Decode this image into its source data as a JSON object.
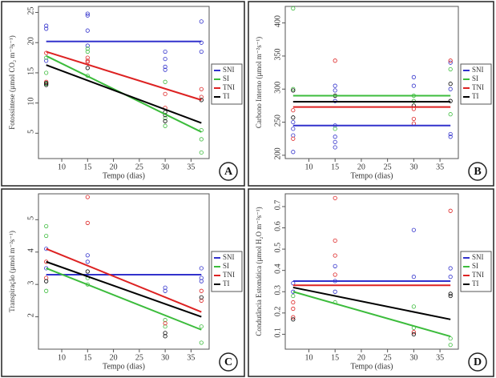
{
  "chart_data": [
    {
      "type": "scatter",
      "panel": "A",
      "ylabel": "Fotossíntese (µmol CO₂ m⁻²s⁻¹)",
      "xlabel": "Tempo (dias)",
      "xlim": [
        5.5,
        38.5
      ],
      "xticks": [
        10,
        15,
        20,
        25,
        30,
        35
      ],
      "ylim": [
        0.8,
        26
      ],
      "yticks": [
        5,
        10,
        15,
        20,
        25
      ],
      "fit_x": [
        7,
        37
      ],
      "series": [
        {
          "name": "SNI",
          "color": "#3232cc",
          "x": [
            7,
            7,
            7,
            15,
            15,
            15,
            15,
            30,
            30,
            30,
            30,
            37,
            37,
            37
          ],
          "values": [
            22.8,
            22.3,
            17.0,
            24.8,
            24.5,
            22.0,
            19.5,
            18.5,
            17.3,
            16.0,
            15.5,
            23.5,
            20.0,
            18.5
          ],
          "fit": [
            20.2,
            20.2
          ]
        },
        {
          "name": "SI",
          "color": "#3cbc3c",
          "x": [
            7,
            7,
            7,
            15,
            15,
            15,
            30,
            30,
            30,
            37,
            37,
            37
          ],
          "values": [
            13.2,
            15.0,
            17.5,
            19.0,
            14.5,
            18.5,
            13.5,
            7.5,
            6.2,
            5.5,
            4.0,
            1.8
          ],
          "fit": [
            17.8,
            5.2
          ]
        },
        {
          "name": "TNI",
          "color": "#dd2222",
          "x": [
            7,
            7,
            15,
            15,
            15,
            30,
            30,
            37,
            37
          ],
          "values": [
            13.5,
            18.3,
            17.5,
            16.8,
            17.0,
            11.5,
            9.2,
            12.3,
            11.0
          ],
          "fit": [
            18.5,
            10.5
          ]
        },
        {
          "name": "TI",
          "color": "#000000",
          "x": [
            7,
            7,
            15,
            30,
            30,
            30,
            37
          ],
          "values": [
            13.3,
            13.0,
            15.8,
            8.5,
            8.0,
            7.0,
            10.5
          ],
          "fit": [
            16.3,
            6.7
          ]
        }
      ]
    },
    {
      "type": "scatter",
      "panel": "B",
      "ylabel": "Carbono Interno (µmol m⁻²s⁻¹)",
      "xlabel": "Tempo (dias)",
      "xlim": [
        5.5,
        38.5
      ],
      "xticks": [
        10,
        15,
        20,
        25,
        30,
        35
      ],
      "ylim": [
        195,
        425
      ],
      "yticks": [
        200,
        250,
        300,
        350,
        400
      ],
      "fit_x": [
        7,
        37
      ],
      "series": [
        {
          "name": "SNI",
          "color": "#3232cc",
          "x": [
            7,
            7,
            7,
            7,
            15,
            15,
            15,
            15,
            15,
            15,
            15,
            30,
            30,
            37,
            37,
            37,
            37
          ],
          "values": [
            250,
            240,
            230,
            205,
            305,
            298,
            282,
            245,
            228,
            220,
            212,
            318,
            305,
            340,
            300,
            232,
            228
          ],
          "fit": [
            245,
            245
          ]
        },
        {
          "name": "SI",
          "color": "#3cbc3c",
          "x": [
            7,
            7,
            15,
            30,
            30,
            37,
            37
          ],
          "values": [
            422,
            300,
            240,
            290,
            282,
            330,
            262
          ],
          "fit": [
            290,
            290
          ]
        },
        {
          "name": "TNI",
          "color": "#dd2222",
          "x": [
            7,
            7,
            15,
            30,
            30,
            30,
            37
          ],
          "values": [
            268,
            225,
            343,
            270,
            255,
            248,
            343
          ],
          "fit": [
            273,
            273
          ]
        },
        {
          "name": "TI",
          "color": "#000000",
          "x": [
            7,
            7,
            15,
            30,
            37,
            37
          ],
          "values": [
            298,
            257,
            290,
            275,
            308,
            282
          ],
          "fit": [
            281,
            281
          ]
        }
      ]
    },
    {
      "type": "scatter",
      "panel": "C",
      "ylabel": "Transpiração (µmol m⁻²s⁻¹)",
      "xlabel": "Tempo (dias)",
      "xlim": [
        5.5,
        38.5
      ],
      "xticks": [
        10,
        15,
        20,
        25,
        30,
        35
      ],
      "ylim": [
        1.0,
        5.8
      ],
      "yticks": [
        2,
        3,
        4,
        5
      ],
      "fit_x": [
        7,
        37
      ],
      "series": [
        {
          "name": "SNI",
          "color": "#3232cc",
          "x": [
            7,
            7,
            15,
            15,
            30,
            30,
            37,
            37,
            37
          ],
          "values": [
            4.1,
            3.5,
            3.9,
            3.7,
            2.9,
            2.8,
            3.5,
            3.2,
            3.1
          ],
          "fit": [
            3.3,
            3.3
          ]
        },
        {
          "name": "SI",
          "color": "#3cbc3c",
          "x": [
            7,
            7,
            7,
            15,
            15,
            30,
            30,
            37,
            37
          ],
          "values": [
            4.8,
            4.5,
            2.8,
            3.0,
            3.2,
            1.9,
            1.7,
            1.7,
            1.2
          ],
          "fit": [
            3.5,
            1.6
          ]
        },
        {
          "name": "TNI",
          "color": "#dd2222",
          "x": [
            7,
            7,
            15,
            15,
            30,
            37,
            37
          ],
          "values": [
            3.7,
            3.2,
            5.7,
            4.9,
            1.8,
            2.5,
            2.8
          ],
          "fit": [
            4.1,
            2.15
          ]
        },
        {
          "name": "TI",
          "color": "#000000",
          "x": [
            7,
            15,
            30,
            30,
            37
          ],
          "values": [
            3.1,
            3.4,
            1.5,
            1.4,
            2.6
          ],
          "fit": [
            3.7,
            2.0
          ]
        }
      ]
    },
    {
      "type": "scatter",
      "panel": "D",
      "ylabel": "Condutância Estomática (µmol H₂O m⁻²s⁻¹)",
      "xlabel": "Tempo (dias)",
      "xlim": [
        5.5,
        38.5
      ],
      "xticks": [
        10,
        15,
        20,
        25,
        30,
        35
      ],
      "ylim": [
        0.03,
        0.76
      ],
      "yticks": [
        0.1,
        0.2,
        0.3,
        0.4,
        0.5,
        0.6,
        0.7
      ],
      "fit_x": [
        7,
        37
      ],
      "series": [
        {
          "name": "SNI",
          "color": "#3232cc",
          "x": [
            7,
            7,
            15,
            15,
            15,
            30,
            30,
            37,
            37
          ],
          "values": [
            0.34,
            0.3,
            0.42,
            0.35,
            0.3,
            0.59,
            0.37,
            0.41,
            0.37
          ],
          "fit": [
            0.35,
            0.35
          ]
        },
        {
          "name": "SI",
          "color": "#3cbc3c",
          "x": [
            7,
            15,
            30,
            30,
            37,
            37
          ],
          "values": [
            0.28,
            0.25,
            0.23,
            0.13,
            0.08,
            0.05
          ],
          "fit": [
            0.3,
            0.09
          ]
        },
        {
          "name": "TNI",
          "color": "#dd2222",
          "x": [
            7,
            7,
            7,
            15,
            15,
            15,
            15,
            30,
            37
          ],
          "values": [
            0.25,
            0.22,
            0.18,
            0.74,
            0.54,
            0.47,
            0.38,
            0.11,
            0.68
          ],
          "fit": [
            0.33,
            0.33
          ]
        },
        {
          "name": "TI",
          "color": "#000000",
          "x": [
            7,
            30,
            37,
            37
          ],
          "values": [
            0.17,
            0.1,
            0.29,
            0.28
          ],
          "fit": [
            0.32,
            0.17
          ]
        }
      ]
    }
  ]
}
